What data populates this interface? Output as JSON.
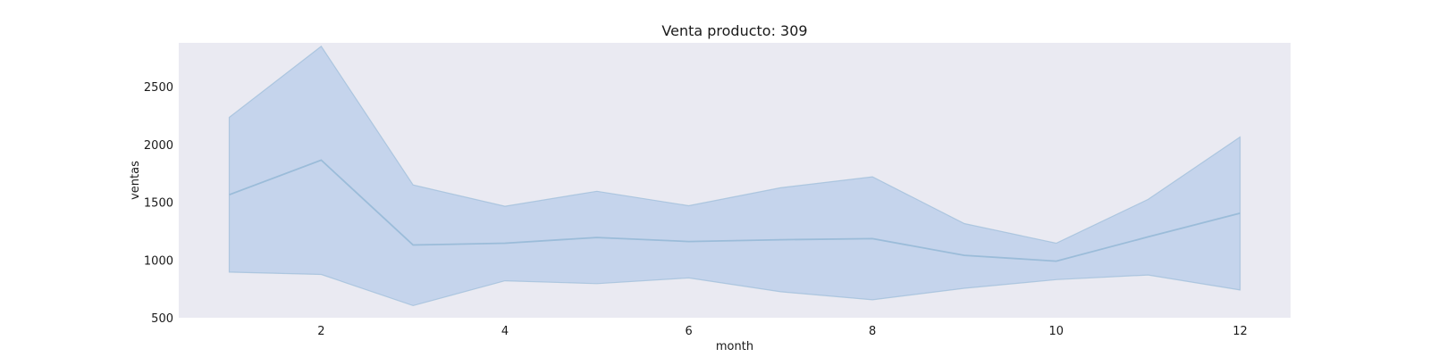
{
  "chart_data": {
    "type": "area",
    "title": "Venta producto: 309",
    "xlabel": "month",
    "ylabel": "ventas",
    "xlim": [
      0.45,
      12.55
    ],
    "ylim": [
      500,
      2880
    ],
    "xticks": [
      2,
      4,
      6,
      8,
      10,
      12
    ],
    "yticks": [
      500,
      1000,
      1500,
      2000,
      2500
    ],
    "grid": false,
    "x": [
      1,
      2,
      3,
      4,
      5,
      6,
      7,
      8,
      9,
      10,
      11,
      12
    ],
    "series": [
      {
        "values": [
          1565,
          1865,
          1130,
          1145,
          1195,
          1160,
          1175,
          1185,
          1040,
          990,
          1200,
          1405
        ],
        "lower": [
          895,
          875,
          605,
          820,
          795,
          845,
          725,
          655,
          755,
          830,
          870,
          740
        ],
        "upper": [
          2235,
          2850,
          1650,
          1465,
          1595,
          1470,
          1625,
          1720,
          1315,
          1145,
          1525,
          2065
        ]
      }
    ],
    "colors": {
      "plot_background": "#eaeaf2",
      "band_fill": "#aec7e8",
      "line": "#9bbcd9",
      "text": "#1a1a1a"
    }
  }
}
